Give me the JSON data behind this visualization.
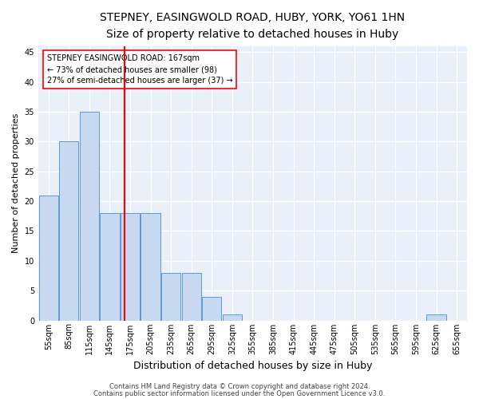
{
  "title1": "STEPNEY, EASINGWOLD ROAD, HUBY, YORK, YO61 1HN",
  "title2": "Size of property relative to detached houses in Huby",
  "xlabel": "Distribution of detached houses by size in Huby",
  "ylabel": "Number of detached properties",
  "categories": [
    "55sqm",
    "85sqm",
    "115sqm",
    "145sqm",
    "175sqm",
    "205sqm",
    "235sqm",
    "265sqm",
    "295sqm",
    "325sqm",
    "355sqm",
    "385sqm",
    "415sqm",
    "445sqm",
    "475sqm",
    "505sqm",
    "535sqm",
    "565sqm",
    "595sqm",
    "625sqm",
    "655sqm"
  ],
  "values": [
    21,
    30,
    35,
    18,
    18,
    18,
    8,
    8,
    4,
    1,
    0,
    0,
    0,
    0,
    0,
    0,
    0,
    0,
    0,
    1,
    0
  ],
  "bar_color": "#c6d9f0",
  "bar_edge_color": "#5b9bd5",
  "annotation_line1": "STEPNEY EASINGWOLD ROAD: 167sqm",
  "annotation_line2": "← 73% of detached houses are smaller (98)",
  "annotation_line3": "27% of semi-detached houses are larger (37) →",
  "ylim": [
    0,
    46
  ],
  "yticks": [
    0,
    5,
    10,
    15,
    20,
    25,
    30,
    35,
    40,
    45
  ],
  "footnote1": "Contains HM Land Registry data © Crown copyright and database right 2024.",
  "footnote2": "Contains public sector information licensed under the Open Government Licence v3.0.",
  "bg_color": "#eaf0f9",
  "grid_color": "#ffffff",
  "title1_fontsize": 10,
  "title2_fontsize": 9,
  "xlabel_fontsize": 9,
  "ylabel_fontsize": 8,
  "tick_fontsize": 7,
  "annot_fontsize": 7,
  "footnote_fontsize": 6
}
